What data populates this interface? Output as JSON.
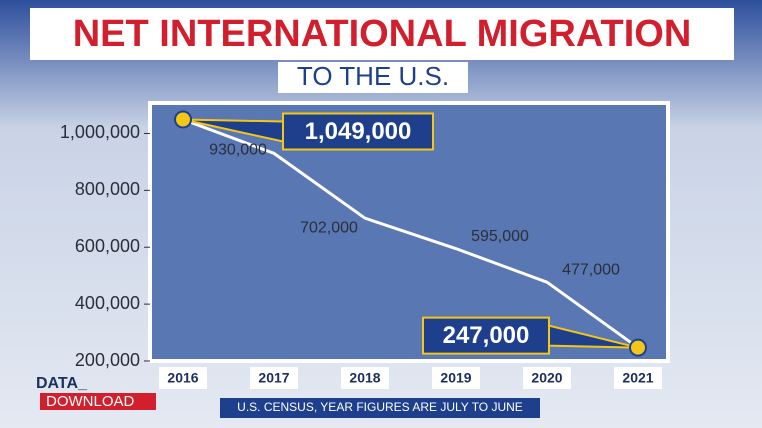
{
  "chart_data": {
    "type": "line",
    "title": "NET INTERNATIONAL MIGRATION",
    "subtitle": "TO THE U.S.",
    "categories": [
      "2016",
      "2017",
      "2018",
      "2019",
      "2020",
      "2021"
    ],
    "values": [
      1049000,
      930000,
      702000,
      595000,
      477000,
      247000
    ],
    "value_labels": [
      "1,049,000",
      "930,000",
      "702,000",
      "595,000",
      "477,000",
      "247,000"
    ],
    "highlight": [
      0,
      5
    ],
    "color": "#ffffff",
    "highlight_color": "#f5c518",
    "ylim": [
      200000,
      1100000
    ],
    "yticks": [
      {
        "value": 200000,
        "label": "200,000"
      },
      {
        "value": 400000,
        "label": "400,000"
      },
      {
        "value": 600000,
        "label": "600,000"
      },
      {
        "value": 800000,
        "label": "800,000"
      },
      {
        "value": 1000000,
        "label": "1,000,000"
      }
    ],
    "source": "U.S. CENSUS, YEAR FIGURES ARE JULY TO JUNE",
    "logo": {
      "top": "DATA_",
      "bottom": "DOWNLOAD"
    }
  }
}
